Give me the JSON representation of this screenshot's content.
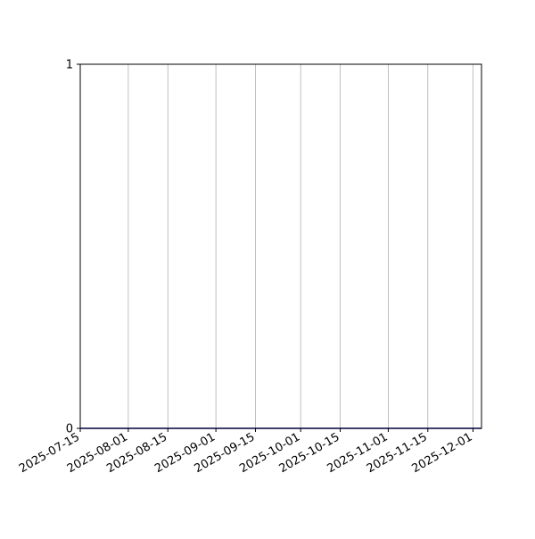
{
  "chart_data": {
    "type": "line",
    "title": "",
    "xlabel": "",
    "ylabel": "",
    "x_type": "date",
    "xlim": [
      "2025-07-15",
      "2025-12-04"
    ],
    "ylim": [
      0,
      1
    ],
    "x_ticks": [
      "2025-07-15",
      "2025-08-01",
      "2025-08-15",
      "2025-09-01",
      "2025-09-15",
      "2025-10-01",
      "2025-10-15",
      "2025-11-01",
      "2025-11-15",
      "2025-12-01"
    ],
    "y_ticks": [
      "0",
      "1"
    ],
    "grid": "vertical (x-axis only)",
    "grid_color": "#b0b0b0",
    "series": [
      {
        "color": "#0000b0",
        "x": [
          "2025-07-15",
          "2025-12-04"
        ],
        "y": [
          0,
          0
        ]
      }
    ]
  }
}
